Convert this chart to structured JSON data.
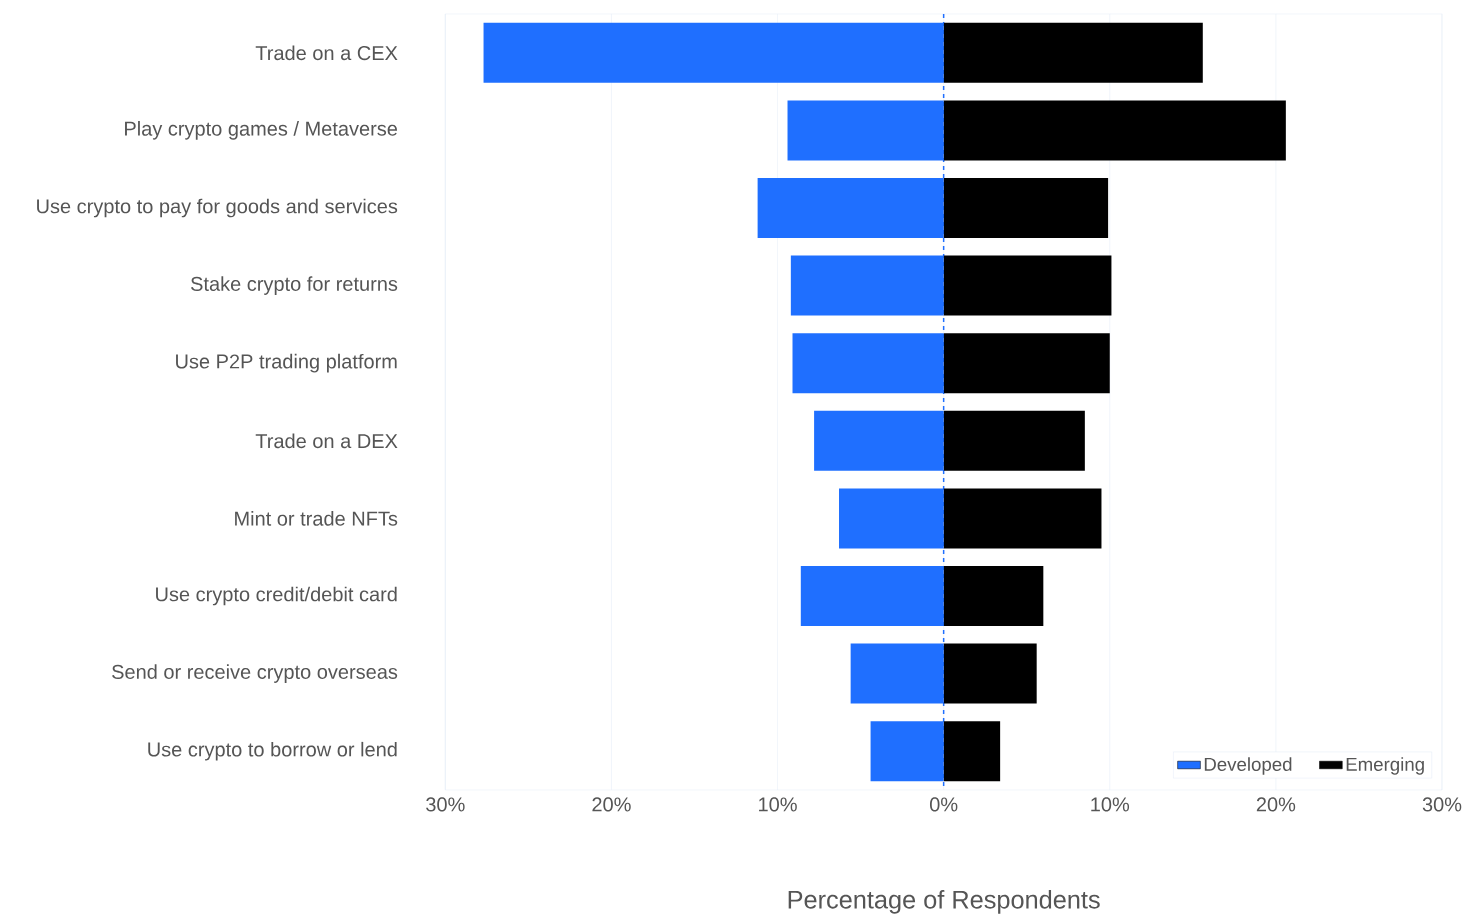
{
  "chart_data": {
    "type": "bar",
    "orientation": "horizontal",
    "stacked": true,
    "xlabel": "Percentage of Respondents",
    "categories": [
      "Trade on a CEX",
      "Play crypto games / Metaverse",
      "Use crypto to pay for goods and services",
      "Stake crypto for returns",
      "Use P2P trading platform",
      "Trade on a DEX",
      "Mint or trade NFTs",
      "Use crypto credit/debit card",
      "Send or receive crypto overseas",
      "Use crypto to borrow or lend"
    ],
    "series": [
      {
        "name": "Developed",
        "color": "#1f6fff",
        "values": [
          -27.7,
          -9.4,
          -11.2,
          -9.2,
          -9.1,
          -7.8,
          -6.3,
          -8.6,
          -5.6,
          -4.4
        ]
      },
      {
        "name": "Emerging",
        "color": "#000000",
        "values": [
          15.6,
          20.6,
          9.9,
          10.1,
          10.0,
          8.5,
          9.5,
          6.0,
          5.6,
          3.4
        ]
      }
    ],
    "xlim": [
      -30,
      30
    ],
    "xticks": [
      {
        "value": -30,
        "label": "30%"
      },
      {
        "value": -20,
        "label": "20%"
      },
      {
        "value": -10,
        "label": "10%"
      },
      {
        "value": 0,
        "label": "0%"
      },
      {
        "value": 10,
        "label": "10%"
      },
      {
        "value": 20,
        "label": "20%"
      },
      {
        "value": 30,
        "label": "30%"
      }
    ],
    "grid": "x",
    "legend": "bottom right",
    "ref_lines": [
      {
        "axis": "x",
        "value": 0,
        "color": "#1f6fff",
        "line_style": "dashed"
      }
    ]
  }
}
